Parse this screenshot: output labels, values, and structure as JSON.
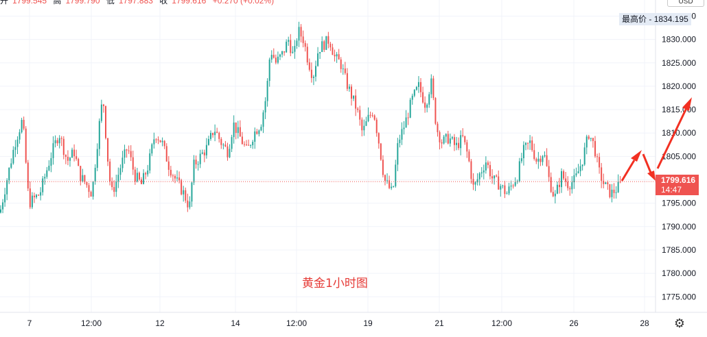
{
  "legend": {
    "open_label": "开",
    "open": "1799.545",
    "high_label": "高",
    "high": "1799.790",
    "low_label": "低",
    "low": "1797.883",
    "close_label": "收",
    "close": "1799.616",
    "change": "+0.270 (+0.02%)"
  },
  "currency": "USD",
  "high_marker": {
    "label": "最高价",
    "value": "1834.195"
  },
  "last_price": {
    "value": "1799.616",
    "countdown": "14:47"
  },
  "annotation": "黄金1小时图",
  "settings_icon": "gear-icon",
  "colors": {
    "up": "#26a69a",
    "down": "#ef5350",
    "arrow": "#f23022",
    "grid": "#f0f3fa",
    "annotation": "#e53935"
  },
  "chart_data": {
    "type": "candlestick",
    "title": "",
    "xlabel": "",
    "ylabel": "",
    "ylim": [
      1771.0,
      1838.0
    ],
    "y_ticks": [
      "1775.000",
      "1780.000",
      "1785.000",
      "1790.000",
      "1795.000",
      "1800.000",
      "1805.000",
      "1810.000",
      "1815.000",
      "1820.000",
      "1825.000",
      "1830.000",
      "1835.000"
    ],
    "x_ticks": [
      "7",
      "12:00",
      "12",
      "14",
      "12:00",
      "19",
      "21",
      "12:00",
      "26",
      "28"
    ],
    "grid": true,
    "last_price": 1799.616,
    "period_high": 1834.195,
    "price_path": [
      [
        0,
        1793
      ],
      [
        10,
        1800
      ],
      [
        22,
        1808
      ],
      [
        33,
        1813
      ],
      [
        42,
        1795
      ],
      [
        50,
        1796
      ],
      [
        58,
        1797
      ],
      [
        66,
        1801
      ],
      [
        76,
        1806
      ],
      [
        86,
        1810
      ],
      [
        98,
        1804
      ],
      [
        108,
        1806
      ],
      [
        116,
        1801
      ],
      [
        126,
        1799
      ],
      [
        134,
        1797
      ],
      [
        144,
        1811
      ],
      [
        150,
        1818
      ],
      [
        156,
        1806
      ],
      [
        162,
        1797
      ],
      [
        168,
        1799
      ],
      [
        176,
        1803
      ],
      [
        186,
        1807
      ],
      [
        196,
        1801
      ],
      [
        206,
        1799
      ],
      [
        216,
        1803
      ],
      [
        226,
        1810
      ],
      [
        236,
        1808
      ],
      [
        246,
        1803
      ],
      [
        256,
        1800
      ],
      [
        268,
        1797
      ],
      [
        276,
        1794
      ],
      [
        282,
        1803
      ],
      [
        292,
        1805
      ],
      [
        302,
        1807
      ],
      [
        312,
        1811
      ],
      [
        322,
        1808
      ],
      [
        332,
        1806
      ],
      [
        340,
        1812
      ],
      [
        350,
        1809
      ],
      [
        360,
        1806
      ],
      [
        370,
        1810
      ],
      [
        380,
        1812
      ],
      [
        388,
        1818
      ],
      [
        394,
        1828
      ],
      [
        402,
        1825
      ],
      [
        412,
        1827
      ],
      [
        420,
        1830
      ],
      [
        428,
        1826
      ],
      [
        434,
        1832
      ],
      [
        442,
        1830
      ],
      [
        448,
        1826
      ],
      [
        456,
        1822
      ],
      [
        464,
        1828
      ],
      [
        472,
        1829
      ],
      [
        480,
        1830
      ],
      [
        488,
        1826
      ],
      [
        496,
        1825
      ],
      [
        504,
        1821
      ],
      [
        512,
        1818
      ],
      [
        520,
        1815
      ],
      [
        528,
        1810
      ],
      [
        536,
        1813
      ],
      [
        544,
        1815
      ],
      [
        552,
        1808
      ],
      [
        560,
        1800
      ],
      [
        568,
        1798
      ],
      [
        572,
        1797
      ],
      [
        580,
        1808
      ],
      [
        590,
        1812
      ],
      [
        600,
        1817
      ],
      [
        610,
        1820
      ],
      [
        620,
        1816
      ],
      [
        628,
        1821
      ],
      [
        636,
        1811
      ],
      [
        644,
        1808
      ],
      [
        654,
        1809
      ],
      [
        664,
        1807
      ],
      [
        674,
        1809
      ],
      [
        682,
        1805
      ],
      [
        690,
        1798
      ],
      [
        698,
        1801
      ],
      [
        708,
        1804
      ],
      [
        718,
        1800
      ],
      [
        728,
        1799
      ],
      [
        738,
        1797
      ],
      [
        746,
        1799
      ],
      [
        754,
        1801
      ],
      [
        762,
        1806
      ],
      [
        772,
        1808
      ],
      [
        782,
        1804
      ],
      [
        792,
        1806
      ],
      [
        800,
        1800
      ],
      [
        808,
        1796
      ],
      [
        818,
        1801
      ],
      [
        828,
        1799
      ],
      [
        838,
        1800
      ],
      [
        848,
        1804
      ],
      [
        858,
        1810
      ],
      [
        866,
        1807
      ],
      [
        872,
        1802
      ],
      [
        880,
        1799
      ],
      [
        890,
        1797
      ],
      [
        898,
        1798
      ],
      [
        906,
        1799.6
      ]
    ]
  }
}
